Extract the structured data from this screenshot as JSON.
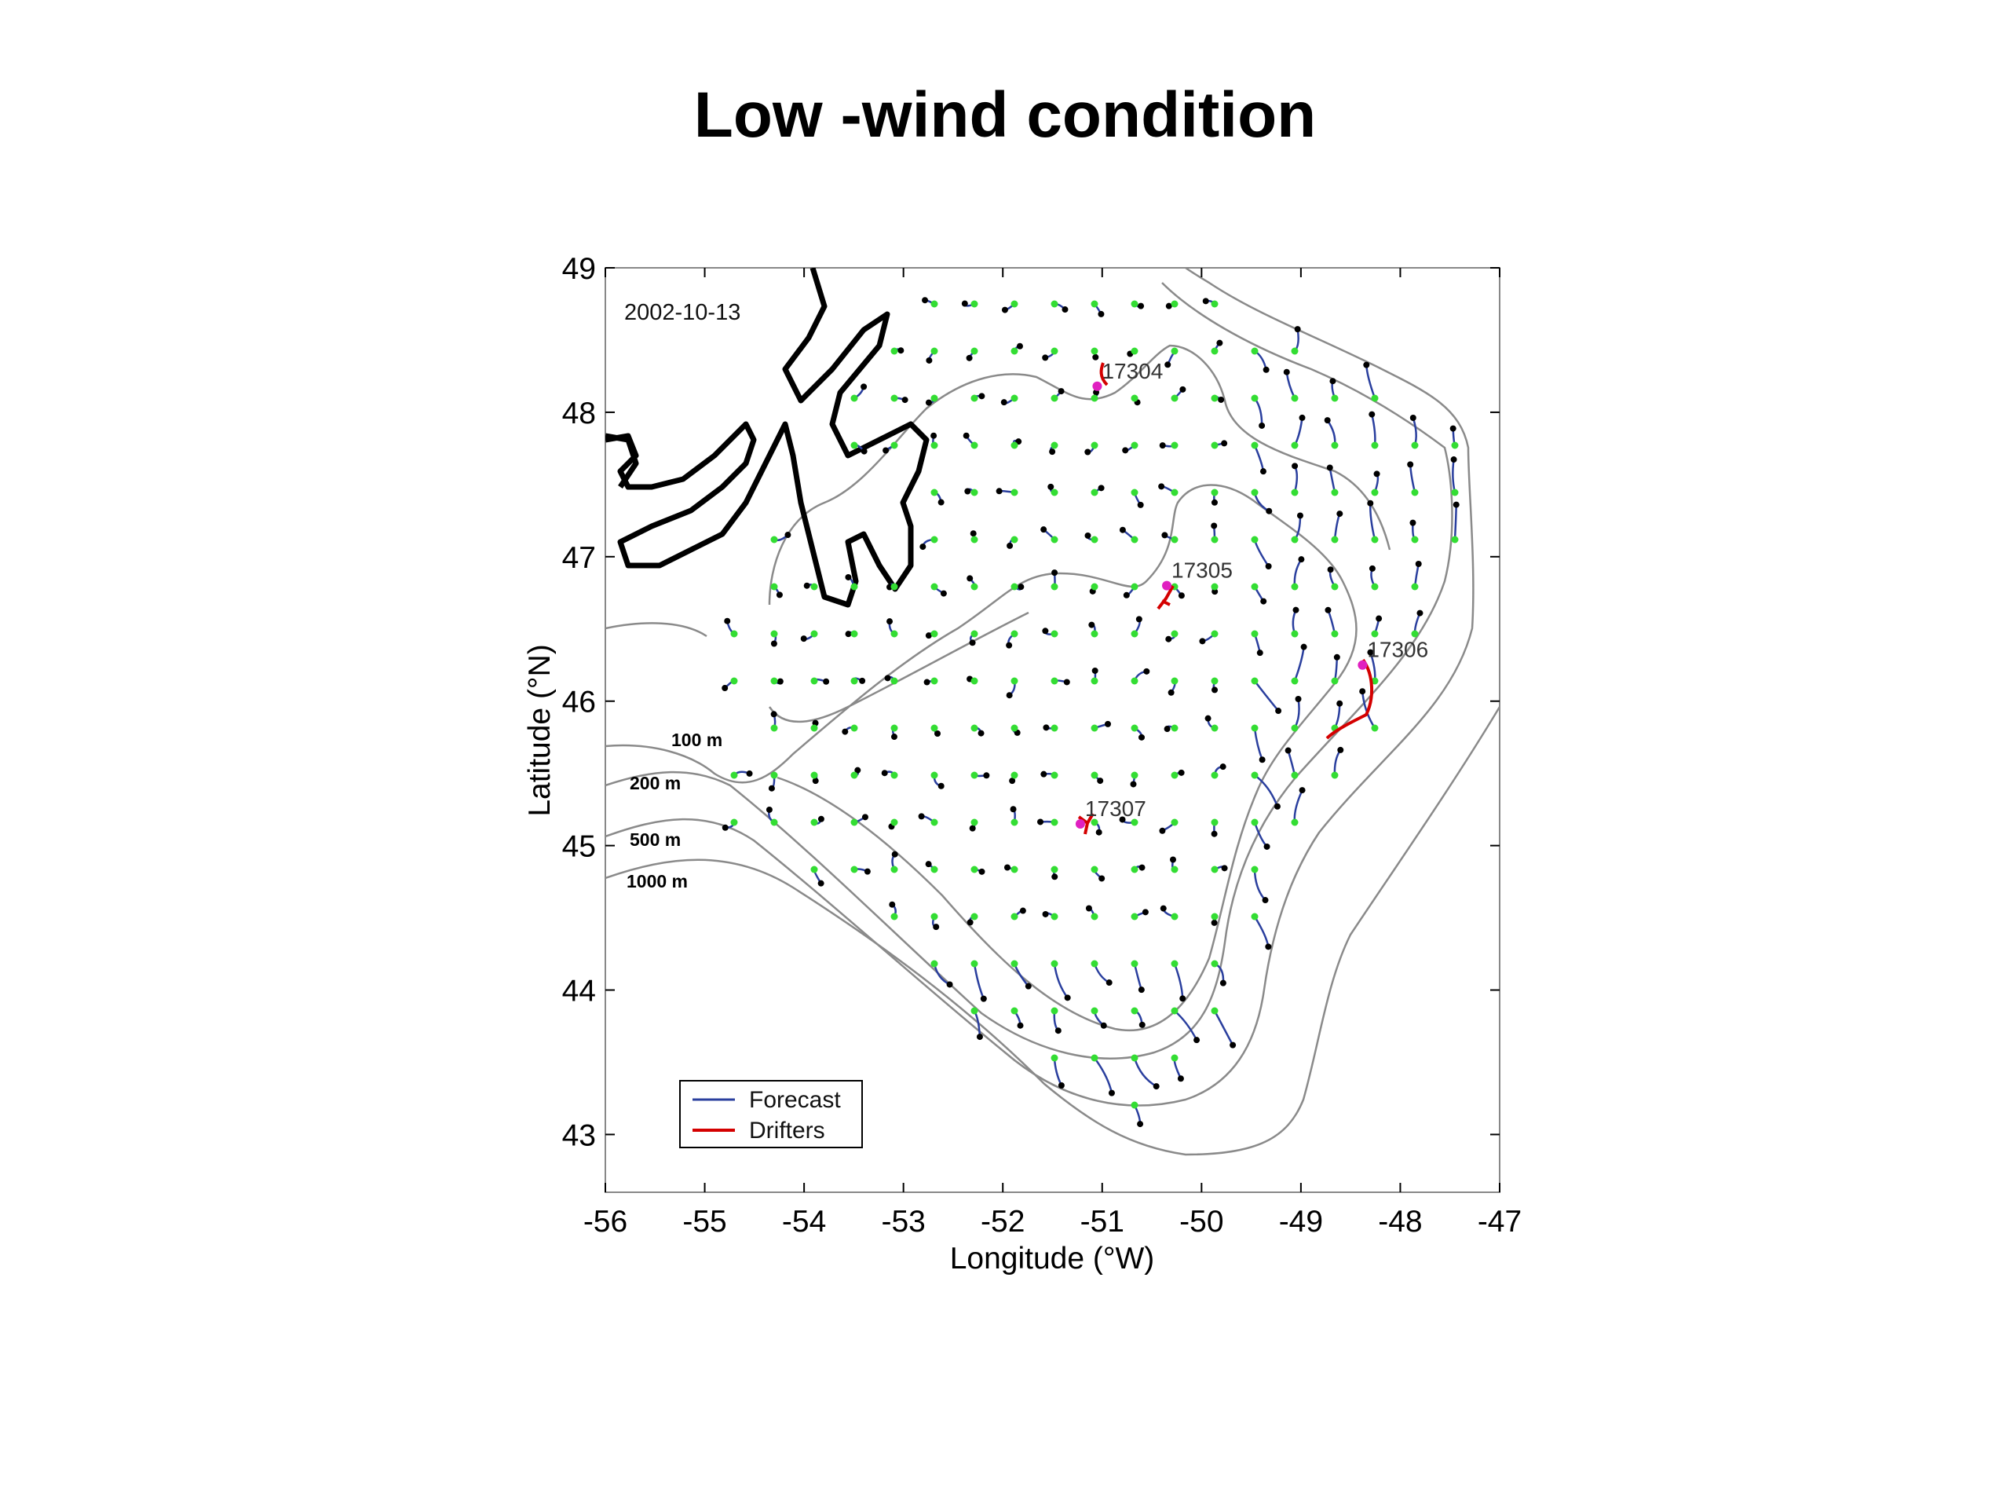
{
  "title": "Low -wind condition",
  "map": {
    "date": "2002-10-13",
    "xlabel": "Longitude (°W)",
    "ylabel": "Latitude (°N)",
    "xlim": [
      -56,
      -47
    ],
    "ylim": [
      42.6,
      49
    ],
    "xticks": [
      -56,
      -55,
      -54,
      -53,
      -52,
      -51,
      -50,
      -49,
      -48,
      -47
    ],
    "yticks": [
      43,
      44,
      45,
      46,
      47,
      48,
      49
    ],
    "depth_contours": [
      "100 m",
      "200 m",
      "500 m",
      "1000 m"
    ],
    "drifters": [
      {
        "id": "17304",
        "lon": -51.05,
        "lat": 48.18
      },
      {
        "id": "17305",
        "lon": -50.35,
        "lat": 46.8
      },
      {
        "id": "17306",
        "lon": -48.38,
        "lat": 46.25
      },
      {
        "id": "17307",
        "lon": -51.22,
        "lat": 45.15
      }
    ],
    "legend": {
      "location": "lower-left",
      "items": [
        {
          "label": "Forecast",
          "color": "#2a3f9e"
        },
        {
          "label": "Drifters",
          "color": "#d40000"
        }
      ]
    },
    "colors": {
      "forecast": "#2a3f9e",
      "drifters": "#d40000",
      "start_point": "#33dd33",
      "end_point": "#000000",
      "drifter_marker": "#e020c0",
      "coast": "#000000",
      "isobath": "#888888"
    }
  }
}
